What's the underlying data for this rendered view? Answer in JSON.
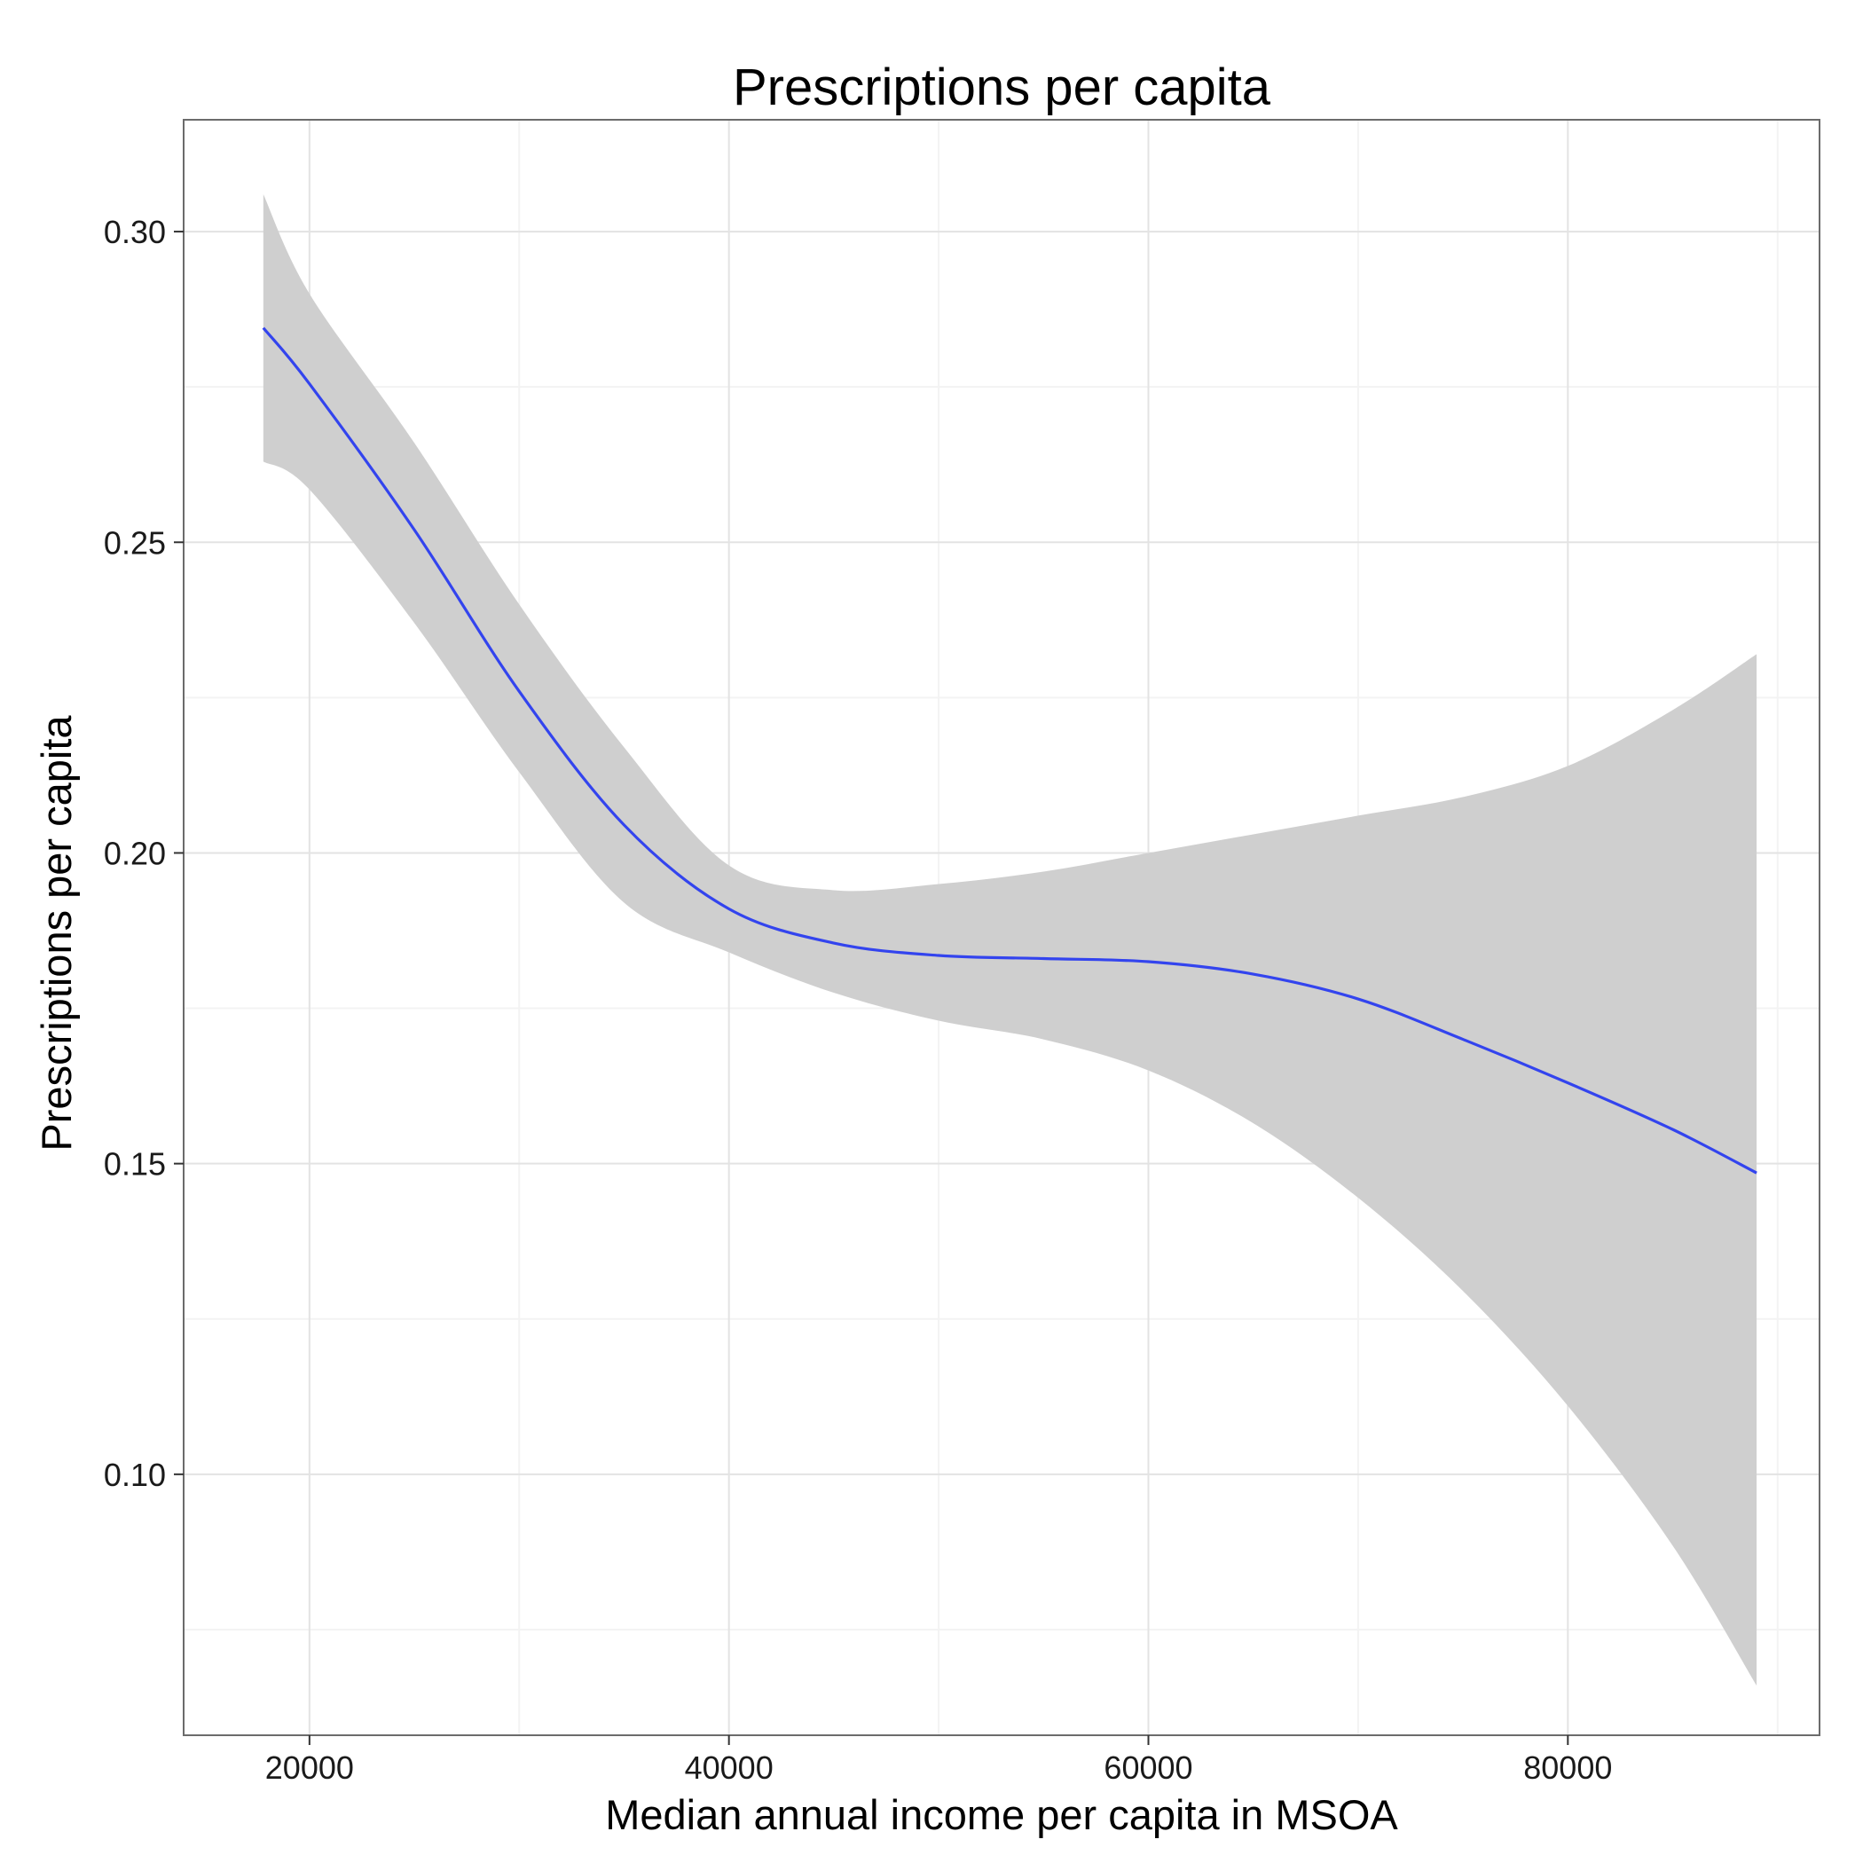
{
  "chart_data": {
    "type": "line",
    "title": "Prescriptions per capita",
    "xlabel": "Median annual income per capita in MSOA",
    "ylabel": "Prescriptions per capita",
    "xlim": [
      14000,
      92000
    ],
    "ylim": [
      0.058,
      0.318
    ],
    "x_ticks": [
      20000,
      40000,
      60000,
      80000
    ],
    "y_ticks": [
      0.1,
      0.15,
      0.2,
      0.25,
      0.3
    ],
    "x_tick_labels": [
      "20000",
      "40000",
      "60000",
      "80000"
    ],
    "y_tick_labels": [
      "0.10",
      "0.15",
      "0.20",
      "0.25",
      "0.30"
    ],
    "grid": true,
    "legend": "none",
    "colors": {
      "line": "#3344ee",
      "ribbon": "#cfcfcf",
      "grid_major": "#e3e3e3",
      "grid_minor": "#f3f3f3",
      "panel_border": "#6b6b6b"
    },
    "series": [
      {
        "x": [
          17800,
          20000,
          25000,
          30000,
          35000,
          40000,
          45000,
          50000,
          55000,
          60000,
          65000,
          70000,
          75000,
          80000,
          85000,
          89000
        ],
        "y": [
          0.2845,
          0.2755,
          0.252,
          0.226,
          0.2045,
          0.191,
          0.1855,
          0.1835,
          0.183,
          0.1825,
          0.1805,
          0.1765,
          0.17,
          0.163,
          0.1555,
          0.1485
        ],
        "lower": [
          0.263,
          0.2585,
          0.237,
          0.213,
          0.192,
          0.184,
          0.1775,
          0.173,
          0.17,
          0.165,
          0.1565,
          0.1445,
          0.1295,
          0.111,
          0.0885,
          0.066
        ],
        "upper": [
          0.306,
          0.29,
          0.266,
          0.24,
          0.217,
          0.198,
          0.194,
          0.195,
          0.197,
          0.2,
          0.203,
          0.206,
          0.209,
          0.214,
          0.223,
          0.232
        ]
      }
    ]
  }
}
